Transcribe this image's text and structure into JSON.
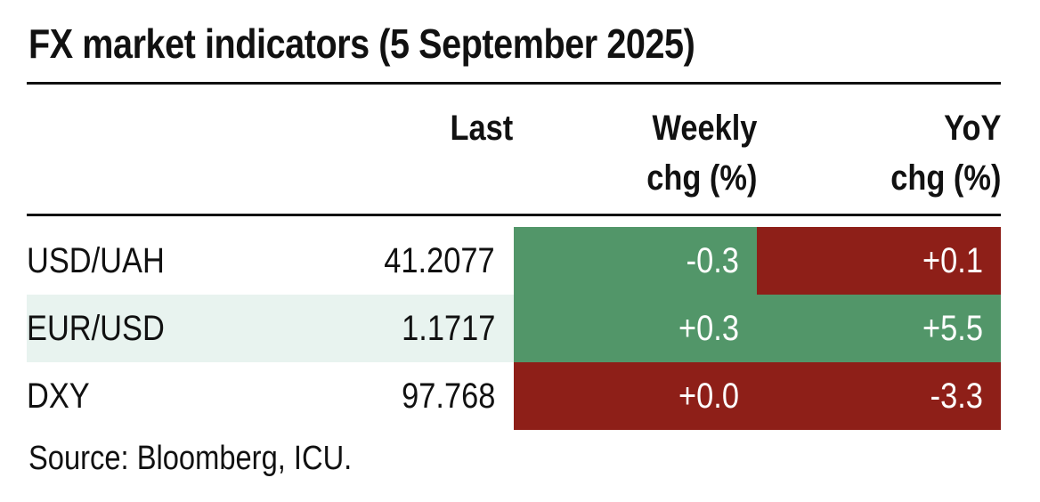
{
  "chart_data": {
    "type": "table",
    "title": "FX market indicators (5 September 2025)",
    "columns": {
      "label": "",
      "last": "Last",
      "weekly_line1": "Weekly",
      "weekly_line2": "chg (%)",
      "yoy_line1": "YoY",
      "yoy_line2": "chg (%)"
    },
    "rows": [
      {
        "name": "USD/UAH",
        "last": "41.2077",
        "weekly": "-0.3",
        "yoy": "+0.1",
        "weekly_color": "#529669",
        "yoy_color": "#8e1f18"
      },
      {
        "name": "EUR/USD",
        "last": "1.1717",
        "weekly": "+0.3",
        "yoy": "+5.5",
        "weekly_color": "#529669",
        "yoy_color": "#529669"
      },
      {
        "name": "DXY",
        "last": "97.768",
        "weekly": "+0.0",
        "yoy": "-3.3",
        "weekly_color": "#8e1f18",
        "yoy_color": "#8e1f18"
      }
    ],
    "source": "Source: Bloomberg, ICU."
  },
  "colors": {
    "positive_cell": "#529669",
    "negative_cell": "#8e1f18",
    "row_shade": "#e8f3ef",
    "rule": "#111111"
  }
}
